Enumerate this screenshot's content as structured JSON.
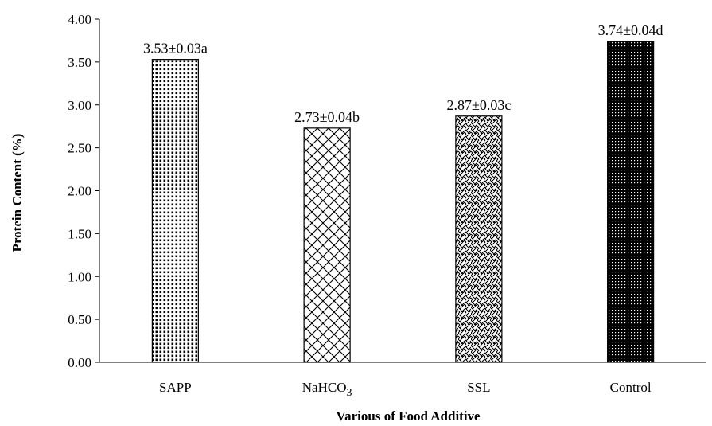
{
  "chart_data": {
    "type": "bar",
    "title": "",
    "xlabel": "Various of Food Additive",
    "ylabel": "Protein Content (%)",
    "ylim": [
      0,
      4
    ],
    "yticks": [
      "0.00",
      "0.50",
      "1.00",
      "1.50",
      "2.00",
      "2.50",
      "3.00",
      "3.50",
      "4.00"
    ],
    "categories": [
      "SAPP",
      "NaHCO3",
      "SSL",
      "Control"
    ],
    "category_display": [
      {
        "main": "NaHCO",
        "sub": "3"
      }
    ],
    "values": [
      3.53,
      2.73,
      2.87,
      3.74
    ],
    "data_labels": [
      "3.53±0.03a",
      "2.73±0.04b",
      "2.87±0.03c",
      "3.74±0.04d"
    ],
    "patterns": [
      "fine-dots",
      "crosshatch",
      "zigzag-weave",
      "dense-dots-dark"
    ],
    "grid": false,
    "legend": "none",
    "colors": {
      "bar_stroke": "#000000",
      "pattern": "#000000",
      "background": "#ffffff"
    }
  }
}
